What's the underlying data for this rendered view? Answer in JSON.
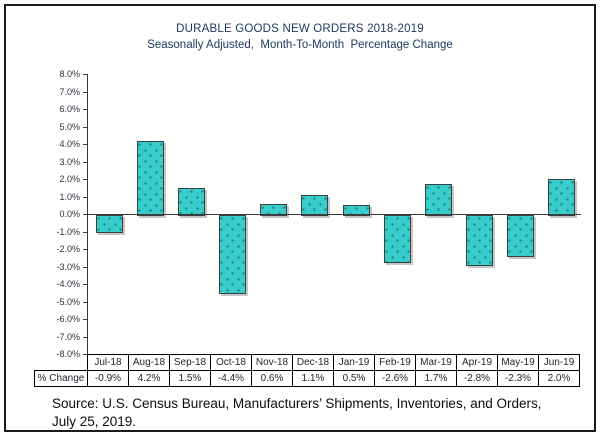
{
  "chart_data": {
    "type": "bar",
    "title": "DURABLE GOODS NEW ORDERS 2018-2019",
    "subtitle": "Seasonally Adjusted,  Month-To-Month  Percentage Change",
    "categories": [
      "Jul-18",
      "Aug-18",
      "Sep-18",
      "Oct-18",
      "Nov-18",
      "Dec-18",
      "Jan-19",
      "Feb-19",
      "Mar-19",
      "Apr-19",
      "May-19",
      "Jun-19"
    ],
    "values": [
      -0.9,
      4.2,
      1.5,
      -4.4,
      0.6,
      1.1,
      0.5,
      -2.6,
      1.7,
      -2.8,
      -2.3,
      2.0
    ],
    "value_labels": [
      "-0.9%",
      "4.2%",
      "1.5%",
      "-4.4%",
      "0.6%",
      "1.1%",
      "0.5%",
      "-2.6%",
      "1.7%",
      "-2.8%",
      "-2.3%",
      "2.0%"
    ],
    "row_label": "% Change",
    "ylim": [
      -8,
      8
    ],
    "ytick_step": 1,
    "ytick_labels": [
      "8.0%",
      "7.0%",
      "6.0%",
      "5.0%",
      "4.0%",
      "3.0%",
      "2.0%",
      "1.0%",
      "0.0%",
      "-1.0%",
      "-2.0%",
      "-3.0%",
      "-4.0%",
      "-5.0%",
      "-6.0%",
      "-7.0%",
      "-8.0%"
    ],
    "grid": false,
    "legend": "none",
    "bar_color": "#38CDCA",
    "bar_border": "#3b3f40"
  },
  "source": {
    "line1": "Source: U.S. Census Bureau, Manufacturers’ Shipments, Inventories, and Orders,",
    "line2": "July 25, 2019."
  }
}
